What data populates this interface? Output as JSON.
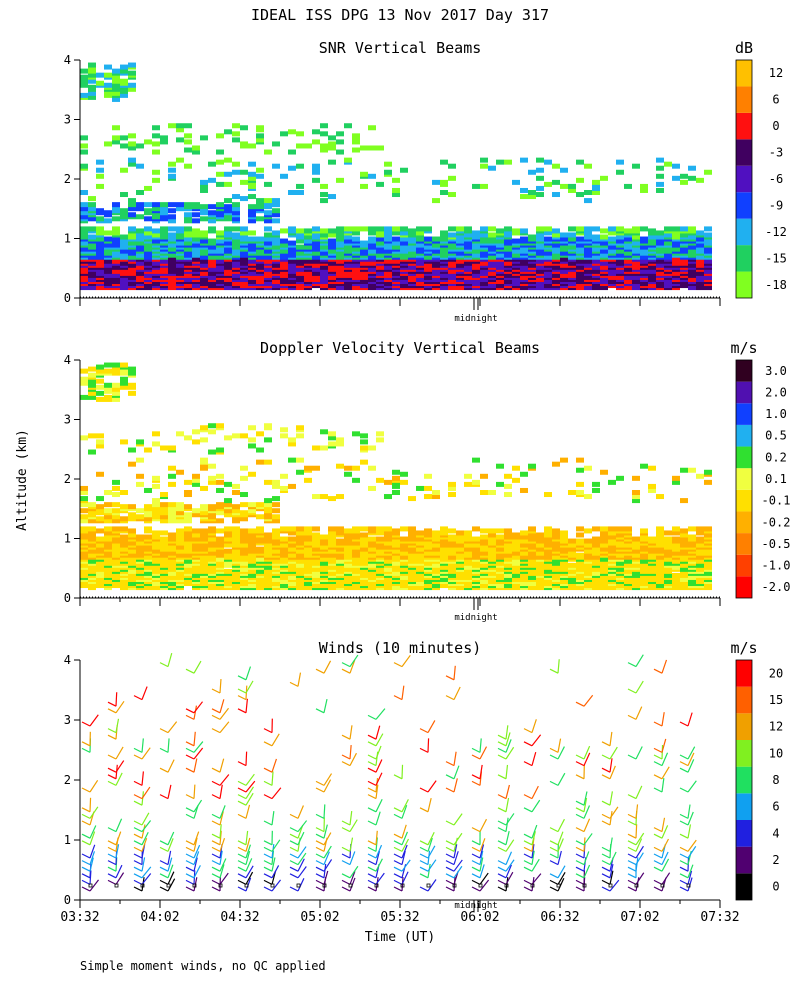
{
  "figure": {
    "title": "IDEAL ISS DPG  13 Nov 2017 Day 317",
    "ylabel": "Altitude (km)",
    "xlabel": "Time (UT)",
    "footnote": "Simple moment winds, no QC applied",
    "midnight_label": "midnight"
  },
  "chart_data": [
    {
      "type": "heatmap",
      "title": "SNR Vertical Beams",
      "units": "dB",
      "ylim": [
        0,
        4
      ],
      "yticks": [
        "0",
        "1",
        "2",
        "3",
        "4"
      ],
      "time_range": [
        "03:32",
        "07:32"
      ],
      "colorbar": [
        {
          "label": "-18",
          "color": "#80ff20"
        },
        {
          "label": "-15",
          "color": "#20d060"
        },
        {
          "label": "-12",
          "color": "#20b0f0"
        },
        {
          "label": "-9",
          "color": "#1040ff"
        },
        {
          "label": "-6",
          "color": "#5010c0"
        },
        {
          "label": "-3",
          "color": "#400060"
        },
        {
          "label": "0",
          "color": "#ff1010"
        },
        {
          "label": "6",
          "color": "#ff8000"
        },
        {
          "label": "12",
          "color": "#ffc000"
        }
      ]
    },
    {
      "type": "heatmap",
      "title": "Doppler Velocity Vertical Beams",
      "units": "m/s",
      "ylim": [
        0,
        4
      ],
      "yticks": [
        "0",
        "1",
        "2",
        "3",
        "4"
      ],
      "time_range": [
        "03:32",
        "07:32"
      ],
      "colorbar": [
        {
          "label": "-2.0",
          "color": "#ff0000"
        },
        {
          "label": "-1.0",
          "color": "#ff4000"
        },
        {
          "label": "-0.5",
          "color": "#ff8000"
        },
        {
          "label": "-0.2",
          "color": "#ffb000"
        },
        {
          "label": "-0.1",
          "color": "#ffe000"
        },
        {
          "label": "0.1",
          "color": "#f0ff40"
        },
        {
          "label": "0.2",
          "color": "#30e030"
        },
        {
          "label": "0.5",
          "color": "#20b0f0"
        },
        {
          "label": "1.0",
          "color": "#1040ff"
        },
        {
          "label": "2.0",
          "color": "#5010b0"
        },
        {
          "label": "3.0",
          "color": "#300020"
        }
      ]
    },
    {
      "type": "barbs",
      "title": "Winds (10 minutes)",
      "units": "m/s",
      "ylim": [
        0,
        4
      ],
      "yticks": [
        "0",
        "1",
        "2",
        "3",
        "4"
      ],
      "xticks": [
        "03:32",
        "04:02",
        "04:32",
        "05:02",
        "05:32",
        "06:02",
        "06:32",
        "07:02",
        "07:32"
      ],
      "colorbar": [
        {
          "label": "0",
          "color": "#000000"
        },
        {
          "label": "2",
          "color": "#500070"
        },
        {
          "label": "4",
          "color": "#2020e0"
        },
        {
          "label": "6",
          "color": "#10a0f0"
        },
        {
          "label": "8",
          "color": "#20e060"
        },
        {
          "label": "10",
          "color": "#80f020"
        },
        {
          "label": "12",
          "color": "#f0a000"
        },
        {
          "label": "15",
          "color": "#ff6000"
        },
        {
          "label": "20",
          "color": "#ff0000"
        }
      ]
    }
  ]
}
